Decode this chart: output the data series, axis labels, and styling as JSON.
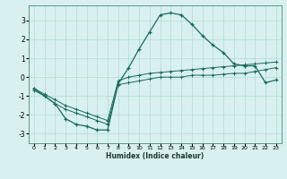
{
  "xlabel": "Humidex (Indice chaleur)",
  "bg_color": "#d8f0f0",
  "grid_color": "#b8ddd8",
  "line_color": "#1a6b5a",
  "xlim": [
    -0.5,
    23.5
  ],
  "ylim": [
    -3.5,
    3.8
  ],
  "xticks": [
    0,
    1,
    2,
    3,
    4,
    5,
    6,
    7,
    8,
    9,
    10,
    11,
    12,
    13,
    14,
    15,
    16,
    17,
    18,
    19,
    20,
    21,
    22,
    23
  ],
  "yticks": [
    -3,
    -2,
    -1,
    0,
    1,
    2,
    3
  ],
  "curve1_x": [
    0,
    1,
    2,
    3,
    4,
    5,
    6,
    7,
    8,
    9,
    10,
    11,
    12,
    13,
    14,
    15,
    16,
    17,
    18,
    19,
    20,
    21,
    22,
    23
  ],
  "curve1_y": [
    -0.6,
    -1.0,
    -1.4,
    -2.2,
    -2.5,
    -2.6,
    -2.8,
    -2.8,
    -0.35,
    0.5,
    1.5,
    2.4,
    3.3,
    3.4,
    3.3,
    2.8,
    2.2,
    1.7,
    1.3,
    0.7,
    0.6,
    0.6,
    -0.3,
    -0.15
  ],
  "curve2_x": [
    0,
    1,
    2,
    3,
    4,
    5,
    6,
    7,
    8,
    9,
    10,
    11,
    12,
    13,
    14,
    15,
    16,
    17,
    18,
    19,
    20,
    21,
    22,
    23
  ],
  "curve2_y": [
    -0.7,
    -1.0,
    -1.4,
    -1.7,
    -1.9,
    -2.1,
    -2.3,
    -2.5,
    -0.4,
    -0.3,
    -0.2,
    -0.1,
    0.0,
    0.0,
    0.0,
    0.1,
    0.1,
    0.1,
    0.15,
    0.2,
    0.2,
    0.3,
    0.4,
    0.5
  ],
  "curve3_x": [
    0,
    1,
    2,
    3,
    4,
    5,
    6,
    7,
    8,
    9,
    10,
    11,
    12,
    13,
    14,
    15,
    16,
    17,
    18,
    19,
    20,
    21,
    22,
    23
  ],
  "curve3_y": [
    -0.6,
    -0.9,
    -1.2,
    -1.5,
    -1.7,
    -1.9,
    -2.1,
    -2.3,
    -0.2,
    0.0,
    0.1,
    0.2,
    0.25,
    0.3,
    0.35,
    0.4,
    0.45,
    0.5,
    0.55,
    0.6,
    0.65,
    0.7,
    0.75,
    0.8
  ]
}
